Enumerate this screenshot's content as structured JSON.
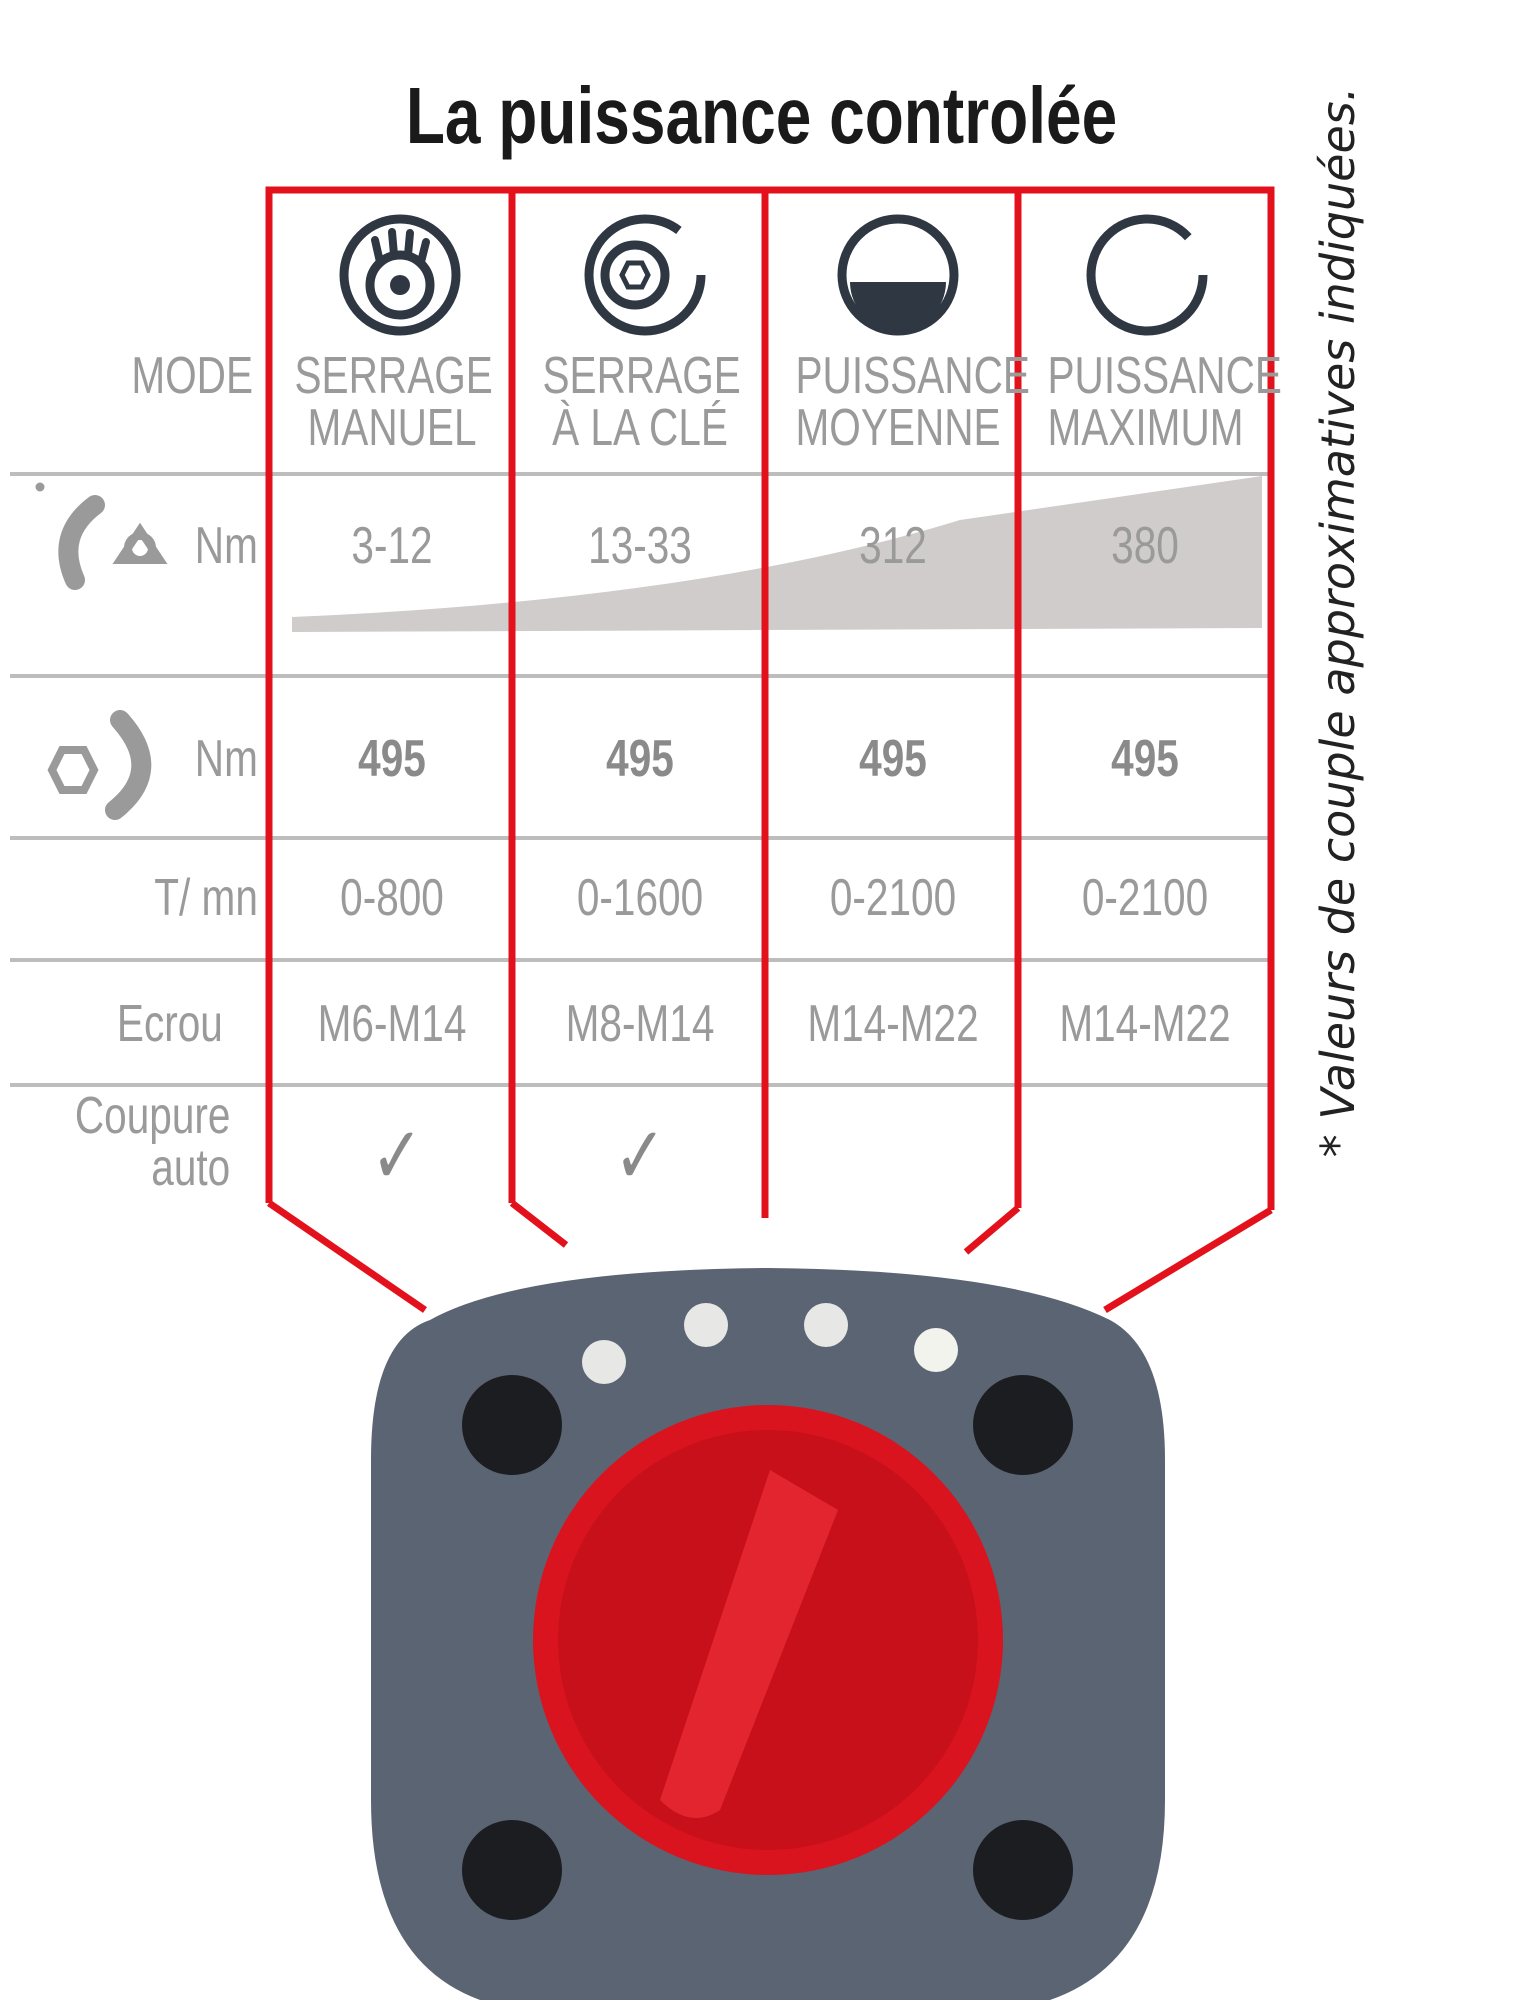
{
  "title": "La puissance controlée",
  "note": "* Valeurs de couple approximatives indiquées.",
  "colors": {
    "frame": "#e3111b",
    "text": "#9a9a9a",
    "icon": "#2e3742",
    "dial_knob": "#d9141e",
    "dial_body": "#5b6472"
  },
  "row_labels": {
    "mode": "MODE",
    "tightening_torque": "Nm",
    "loosening_torque": "Nm",
    "speed": "T/ mn",
    "nut": "Ecrou",
    "auto_cut_1": "Coupure",
    "auto_cut_2": "auto"
  },
  "modes": [
    {
      "icon": "hand-icon",
      "line1": "SERRAGE",
      "line2": "MANUEL",
      "torque": "3-12",
      "loosen": "495",
      "speed": "0-800",
      "nut": "M6-M14",
      "auto_cut": true
    },
    {
      "icon": "wrench-nut-icon",
      "line1": "SERRAGE",
      "line2": "À LA CLÉ",
      "torque": "13-33",
      "loosen": "495",
      "speed": "0-1600",
      "nut": "M8-M14",
      "auto_cut": true
    },
    {
      "icon": "half-circle-icon",
      "line1": "PUISSANCE",
      "line2": "MOYENNE",
      "torque": "312",
      "loosen": "495",
      "speed": "0-2100",
      "nut": "M14-M22",
      "auto_cut": false
    },
    {
      "icon": "open-circle-icon",
      "line1": "PUISSANCE",
      "line2": "MAXIMUM",
      "torque": "380",
      "loosen": "495",
      "speed": "0-2100",
      "nut": "M14-M22",
      "auto_cut": false
    }
  ],
  "check_mark": "✓"
}
